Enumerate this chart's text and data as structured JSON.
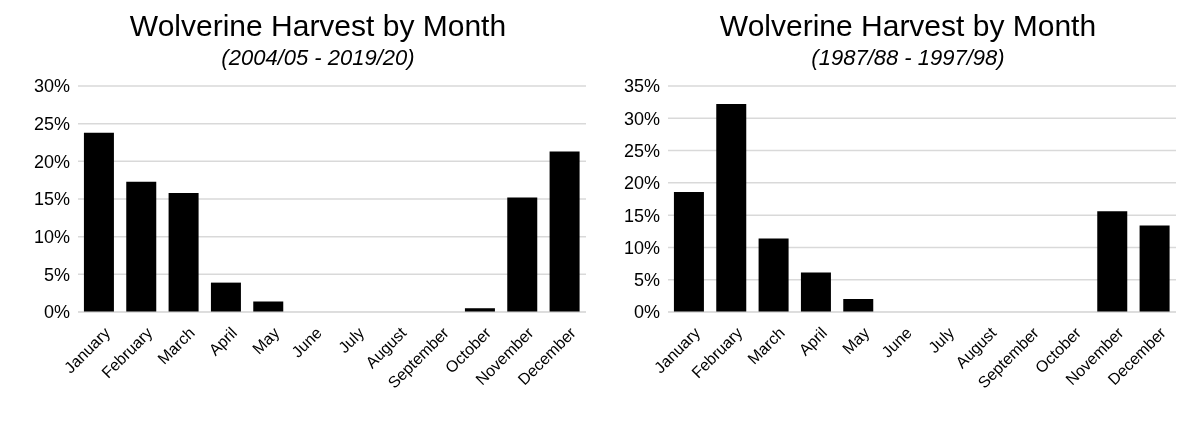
{
  "chart_data": [
    {
      "type": "bar",
      "title": "Wolverine Harvest by Month",
      "subtitle": "(2004/05 - 2019/20)",
      "categories": [
        "January",
        "February",
        "March",
        "April",
        "May",
        "June",
        "July",
        "August",
        "September",
        "October",
        "November",
        "December"
      ],
      "values": [
        23.8,
        17.3,
        15.8,
        3.9,
        1.4,
        0,
        0,
        0,
        0,
        0.5,
        15.2,
        21.3
      ],
      "color": "#000000",
      "ylim": [
        0,
        30
      ],
      "yticks": [
        {
          "value": 0,
          "label": "0%"
        },
        {
          "value": 5,
          "label": "5%"
        },
        {
          "value": 10,
          "label": "10%"
        },
        {
          "value": 15,
          "label": "15%"
        },
        {
          "value": 20,
          "label": "20%"
        },
        {
          "value": 25,
          "label": "25%"
        },
        {
          "value": 30,
          "label": "30%"
        }
      ],
      "grid": "y",
      "legend": false
    },
    {
      "type": "bar",
      "title": "Wolverine Harvest by Month",
      "subtitle": "(1987/88 - 1997/98)",
      "categories": [
        "January",
        "February",
        "March",
        "April",
        "May",
        "June",
        "July",
        "August",
        "September",
        "October",
        "November",
        "December"
      ],
      "values": [
        18.6,
        32.2,
        11.4,
        6.1,
        2.0,
        0,
        0,
        0,
        0,
        0,
        15.6,
        13.4
      ],
      "color": "#000000",
      "ylim": [
        0,
        35
      ],
      "yticks": [
        {
          "value": 0,
          "label": "0%"
        },
        {
          "value": 5,
          "label": "5%"
        },
        {
          "value": 10,
          "label": "10%"
        },
        {
          "value": 15,
          "label": "15%"
        },
        {
          "value": 20,
          "label": "20%"
        },
        {
          "value": 25,
          "label": "25%"
        },
        {
          "value": 30,
          "label": "30%"
        },
        {
          "value": 35,
          "label": "35%"
        }
      ],
      "grid": "y",
      "legend": false
    }
  ]
}
